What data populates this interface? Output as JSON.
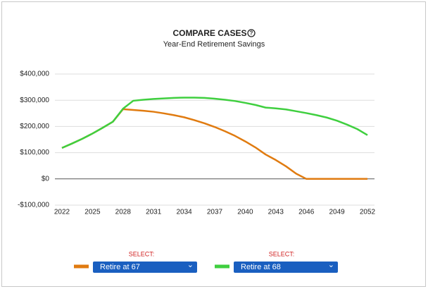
{
  "chart_data": {
    "type": "line",
    "title": "COMPARE CASES",
    "subtitle": "Year-End Retirement Savings",
    "x": [
      2022,
      2023,
      2024,
      2025,
      2026,
      2027,
      2028,
      2029,
      2030,
      2031,
      2032,
      2033,
      2034,
      2035,
      2036,
      2037,
      2038,
      2039,
      2040,
      2041,
      2042,
      2043,
      2044,
      2045,
      2046,
      2047,
      2048,
      2049,
      2050,
      2051,
      2052
    ],
    "series": [
      {
        "name": "Retire at 67",
        "color": "#e07b10",
        "values": [
          118000,
          135000,
          153000,
          173000,
          195000,
          218000,
          266000,
          263000,
          260000,
          256000,
          250000,
          243000,
          235000,
          224000,
          212000,
          198000,
          182000,
          164000,
          143000,
          120000,
          93000,
          72000,
          48000,
          20000,
          0,
          0,
          0,
          0,
          0,
          0,
          0
        ]
      },
      {
        "name": "Retire at 68",
        "color": "#3fcf3f",
        "values": [
          118000,
          135000,
          153000,
          173000,
          195000,
          218000,
          268000,
          298000,
          302000,
          305000,
          307000,
          309000,
          310000,
          310000,
          309000,
          306000,
          302000,
          297000,
          290000,
          282000,
          272000,
          269000,
          265000,
          258000,
          251000,
          243000,
          234000,
          222000,
          207000,
          190000,
          167000
        ]
      }
    ],
    "xlim": [
      2022,
      2052
    ],
    "xticks": [
      2022,
      2025,
      2028,
      2031,
      2034,
      2037,
      2040,
      2043,
      2046,
      2049,
      2052
    ],
    "ylim": [
      -100000,
      400000
    ],
    "yticks": [
      {
        "value": -100000,
        "label": "-$100,000"
      },
      {
        "value": 0,
        "label": "$0"
      },
      {
        "value": 100000,
        "label": "$100,000"
      },
      {
        "value": 200000,
        "label": "$200,000"
      },
      {
        "value": 300000,
        "label": "$300,000"
      },
      {
        "value": 400000,
        "label": "$400,000"
      }
    ],
    "grid": true
  },
  "selectors": [
    {
      "label": "SELECT:"
    },
    {
      "label": "SELECT:"
    }
  ]
}
